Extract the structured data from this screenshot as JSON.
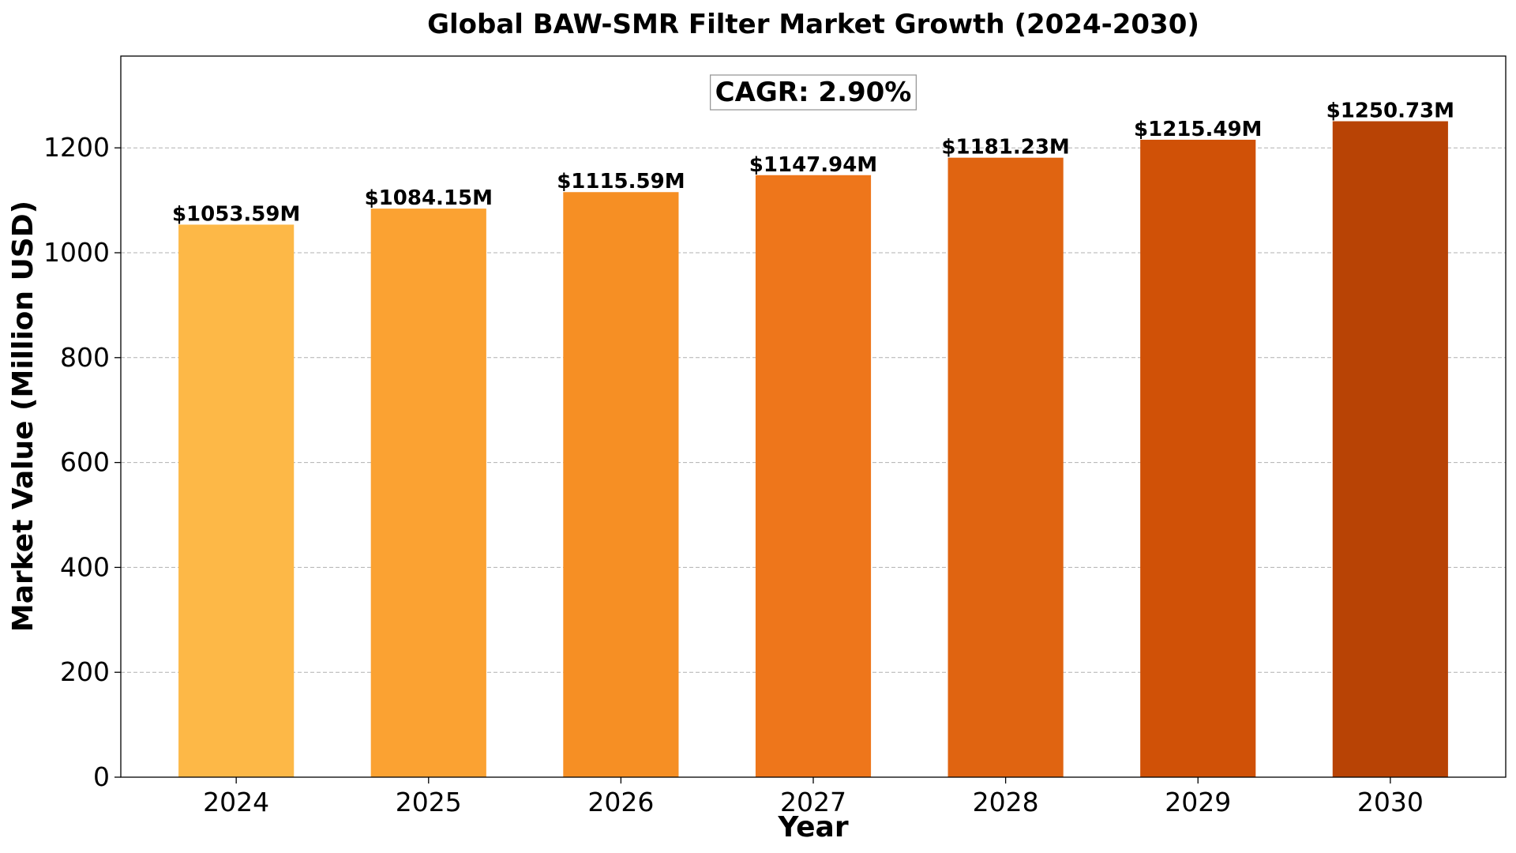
{
  "chart_data": {
    "type": "bar",
    "title": "Global BAW-SMR Filter Market Growth (2024-2030)",
    "xlabel": "Year",
    "ylabel": "Market Value (Million USD)",
    "categories": [
      "2024",
      "2025",
      "2026",
      "2027",
      "2028",
      "2029",
      "2030"
    ],
    "values": [
      1053.59,
      1084.15,
      1115.59,
      1147.94,
      1181.23,
      1215.49,
      1250.73
    ],
    "data_labels": [
      "$1053.59M",
      "$1084.15M",
      "$1115.59M",
      "$1147.94M",
      "$1181.23M",
      "$1215.49M",
      "$1250.73M"
    ],
    "bar_colors": [
      "#FDB847",
      "#FBA232",
      "#F68F24",
      "#EE761B",
      "#E06411",
      "#D05107",
      "#B84305"
    ],
    "ylim": [
      0,
      1375
    ],
    "yticks": [
      0,
      200,
      400,
      600,
      800,
      1000,
      1200
    ],
    "grid": "horizontal-dashed",
    "legend": "none",
    "annotation": "CAGR: 2.90%"
  }
}
